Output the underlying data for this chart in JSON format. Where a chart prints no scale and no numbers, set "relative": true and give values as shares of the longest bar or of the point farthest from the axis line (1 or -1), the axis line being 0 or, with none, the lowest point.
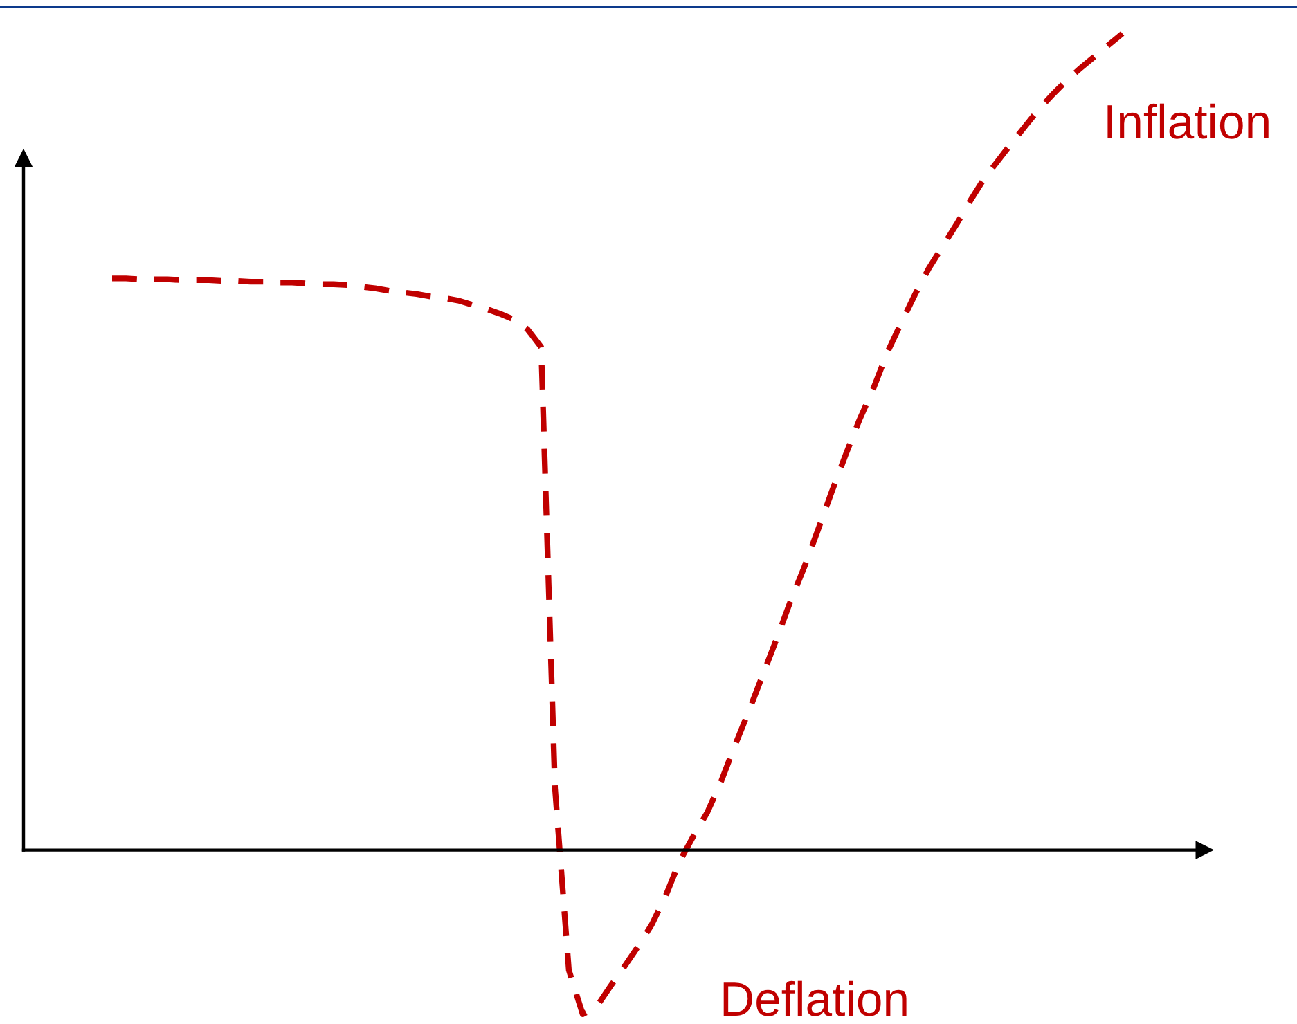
{
  "chart_data": {
    "type": "line",
    "relative": true,
    "line_style": "dashed",
    "categories": [
      null,
      null,
      null,
      null,
      null,
      null,
      null,
      null,
      null,
      null,
      null,
      null,
      null,
      null,
      null,
      null,
      null,
      null,
      null,
      null,
      null,
      null,
      null,
      null,
      null,
      null,
      null,
      null,
      null,
      null,
      null,
      null,
      null,
      null,
      null,
      null,
      null,
      null,
      null,
      null,
      null,
      null,
      null,
      null,
      null,
      null,
      null,
      null,
      null,
      null,
      null,
      null,
      null,
      null,
      null,
      null,
      null,
      null,
      null,
      null,
      null,
      null,
      null,
      null,
      null,
      null,
      null,
      null,
      null,
      null,
      null,
      null,
      null,
      null
    ],
    "series": [
      {
        "color": "#c00000",
        "values": [
          0.7,
          0.7,
          0.699,
          0.699,
          0.699,
          0.698,
          0.698,
          0.698,
          0.697,
          0.697,
          0.696,
          0.696,
          0.695,
          0.695,
          0.694,
          0.693,
          0.693,
          0.692,
          0.69,
          0.688,
          0.685,
          0.683,
          0.681,
          0.678,
          0.676,
          0.673,
          0.668,
          0.663,
          0.657,
          0.65,
          0.638,
          0.616,
          0.076,
          -0.147,
          -0.201,
          -0.192,
          -0.167,
          -0.143,
          -0.118,
          -0.091,
          -0.056,
          -0.014,
          0.017,
          0.046,
          0.084,
          0.128,
          0.17,
          0.214,
          0.258,
          0.304,
          0.346,
          0.392,
          0.439,
          0.484,
          0.527,
          0.565,
          0.609,
          0.645,
          0.68,
          0.712,
          0.739,
          0.766,
          0.795,
          0.822,
          0.844,
          0.866,
          0.887,
          0.908,
          0.926,
          0.943,
          0.958,
          0.972,
          0.986,
          1.0
        ]
      }
    ],
    "annotations": [
      "Inflation",
      "Deflation"
    ]
  }
}
